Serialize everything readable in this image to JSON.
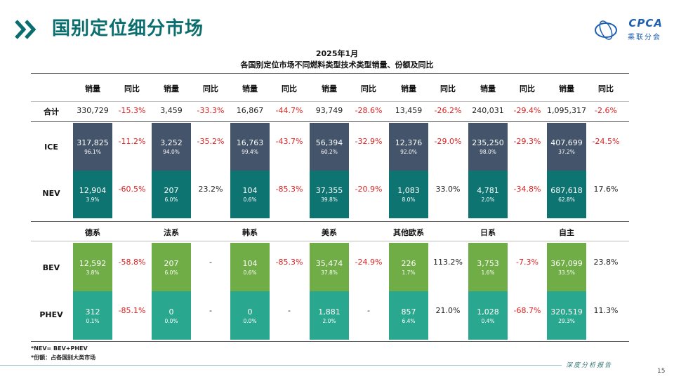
{
  "page_title": "国别定位细分市场",
  "logo": {
    "word": "CPCA",
    "sub": "乘联分会"
  },
  "table_title": {
    "line1": "2025年1月",
    "line2": "各国别定位市场不同燃料类型技术类型销量、份额及同比"
  },
  "top_headers": [
    "销量",
    "同比",
    "销量",
    "同比",
    "销量",
    "同比",
    "销量",
    "同比",
    "销量",
    "同比",
    "销量",
    "同比",
    "销量",
    "同比"
  ],
  "total_row": {
    "label": "合计",
    "cells": [
      {
        "v": "330,729",
        "y": "-15.3%"
      },
      {
        "v": "3,459",
        "y": "-33.3%"
      },
      {
        "v": "16,867",
        "y": "-44.7%"
      },
      {
        "v": "93,749",
        "y": "-28.6%"
      },
      {
        "v": "13,459",
        "y": "-26.2%"
      },
      {
        "v": "240,031",
        "y": "-29.4%"
      },
      {
        "v": "1,095,317",
        "y": "-2.6%"
      }
    ]
  },
  "ice_row": {
    "label": "ICE",
    "cells": [
      {
        "v": "317,825",
        "p": "96.1%",
        "y": "-11.2%"
      },
      {
        "v": "3,252",
        "p": "94.0%",
        "y": "-35.2%"
      },
      {
        "v": "16,763",
        "p": "99.4%",
        "y": "-43.7%"
      },
      {
        "v": "56,394",
        "p": "60.2%",
        "y": "-32.9%"
      },
      {
        "v": "12,376",
        "p": "92.0%",
        "y": "-29.0%"
      },
      {
        "v": "235,250",
        "p": "98.0%",
        "y": "-29.3%"
      },
      {
        "v": "407,699",
        "p": "37.2%",
        "y": "-24.5%"
      }
    ]
  },
  "nev_row": {
    "label": "NEV",
    "cells": [
      {
        "v": "12,904",
        "p": "3.9%",
        "y": "-60.5%"
      },
      {
        "v": "207",
        "p": "6.0%",
        "y": "23.2%"
      },
      {
        "v": "104",
        "p": "0.6%",
        "y": "-85.3%"
      },
      {
        "v": "37,355",
        "p": "39.8%",
        "y": "-20.9%"
      },
      {
        "v": "1,083",
        "p": "8.0%",
        "y": "33.0%"
      },
      {
        "v": "4,781",
        "p": "2.0%",
        "y": "-34.8%"
      },
      {
        "v": "687,618",
        "p": "62.8%",
        "y": "17.6%"
      }
    ]
  },
  "country_headers": [
    "德系",
    "法系",
    "韩系",
    "美系",
    "其他欧系",
    "日系",
    "自主"
  ],
  "bev_row": {
    "label": "BEV",
    "cells": [
      {
        "v": "12,592",
        "p": "3.8%",
        "y": "-58.8%"
      },
      {
        "v": "207",
        "p": "6.0%",
        "y": "-"
      },
      {
        "v": "104",
        "p": "0.6%",
        "y": "-85.3%"
      },
      {
        "v": "35,474",
        "p": "37.8%",
        "y": "-24.9%"
      },
      {
        "v": "226",
        "p": "1.7%",
        "y": "113.2%"
      },
      {
        "v": "3,753",
        "p": "1.6%",
        "y": "-7.3%"
      },
      {
        "v": "367,099",
        "p": "33.5%",
        "y": "23.8%"
      }
    ]
  },
  "phev_row": {
    "label": "PHEV",
    "cells": [
      {
        "v": "312",
        "p": "0.1%",
        "y": "-85.1%"
      },
      {
        "v": "0",
        "p": "0.0%",
        "y": "-"
      },
      {
        "v": "0",
        "p": "0.0%",
        "y": "-"
      },
      {
        "v": "1,881",
        "p": "2.0%",
        "y": "-"
      },
      {
        "v": "857",
        "p": "6.4%",
        "y": "21.0%"
      },
      {
        "v": "1,028",
        "p": "0.4%",
        "y": "-68.7%"
      },
      {
        "v": "320,519",
        "p": "29.3%",
        "y": "11.3%"
      }
    ]
  },
  "footnotes": [
    "*NEV= BEV+PHEV",
    "*份额：占各国别大类市场"
  ],
  "footer_brand": "深度分析报告",
  "page_number": "15",
  "colors": {
    "title": "#0b6e6e",
    "ice": "#44546a",
    "nev": "#0e7472",
    "bev": "#70ad47",
    "phev": "#2aa88f",
    "negative": "#e02020"
  }
}
